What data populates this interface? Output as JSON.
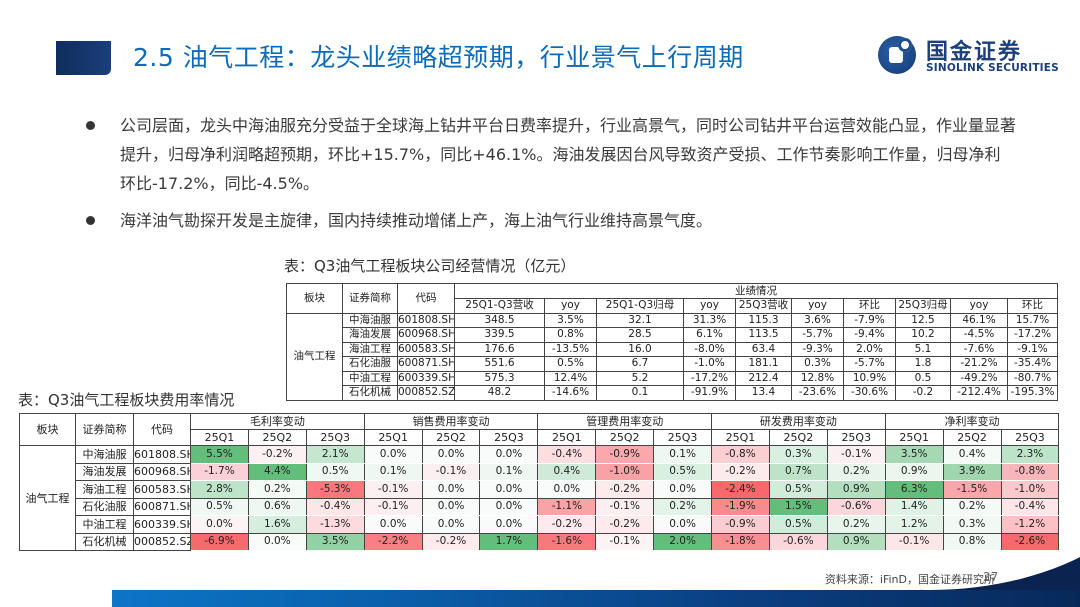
{
  "header": {
    "title": "2.5 油气工程：龙头业绩略超预期，行业景气上行周期",
    "logo_cn": "国金证券",
    "logo_en": "SINOLINK SECURITIES"
  },
  "bullets": [
    "公司层面，龙头中海油服充分受益于全球海上钻井平台日费率提升，行业高景气，同时公司钻井平台运营效能凸显，作业量显著提升，归母净利润略超预期，环比+15.7%，同比+46.1%。海油发展因台风导致资产受损、工作节奏影响工作量，归母净利环比-17.2%，同比-4.5%。",
    "海洋油气勘探开发是主旋律，国内持续推动增储上产，海上油气行业维持高景气度。"
  ],
  "table1": {
    "caption": "表：Q3油气工程板块公司经营情况（亿元）",
    "headers": {
      "sector": "板块",
      "name": "证券简称",
      "code": "代码",
      "group": "业绩情况",
      "cols": [
        "25Q1-Q3营收",
        "yoy",
        "25Q1-Q3归母",
        "yoy",
        "25Q3营收",
        "yoy",
        "环比",
        "25Q3归母",
        "yoy",
        "环比"
      ]
    },
    "sector": "油气工程",
    "rows": [
      {
        "name": "中海油服",
        "code": "601808.SH",
        "values": [
          "348.5",
          "3.5%",
          "32.1",
          "31.3%",
          "115.3",
          "3.6%",
          "-7.9%",
          "12.5",
          "46.1%",
          "15.7%"
        ]
      },
      {
        "name": "海油发展",
        "code": "600968.SH",
        "values": [
          "339.5",
          "0.8%",
          "28.5",
          "6.1%",
          "113.5",
          "-5.7%",
          "-9.4%",
          "10.2",
          "-4.5%",
          "-17.2%"
        ]
      },
      {
        "name": "海油工程",
        "code": "600583.SH",
        "values": [
          "176.6",
          "-13.5%",
          "16.0",
          "-8.0%",
          "63.4",
          "-9.3%",
          "2.0%",
          "5.1",
          "-7.6%",
          "-9.1%"
        ]
      },
      {
        "name": "石化油服",
        "code": "600871.SH",
        "values": [
          "551.6",
          "0.5%",
          "6.7",
          "-1.0%",
          "181.1",
          "0.3%",
          "-5.7%",
          "1.8",
          "-21.2%",
          "-35.4%"
        ]
      },
      {
        "name": "中油工程",
        "code": "600339.SH",
        "values": [
          "575.3",
          "12.4%",
          "5.2",
          "-17.2%",
          "212.4",
          "12.8%",
          "10.9%",
          "0.5",
          "-49.2%",
          "-80.7%"
        ]
      },
      {
        "name": "石化机械",
        "code": "000852.SZ",
        "values": [
          "48.2",
          "-14.6%",
          "0.1",
          "-91.9%",
          "13.4",
          "-23.6%",
          "-30.6%",
          "-0.2",
          "-212.4%",
          "-195.3%"
        ]
      }
    ]
  },
  "table2": {
    "caption": "表：Q3油气工程板块费用率情况",
    "headers": {
      "sector": "板块",
      "name": "证券简称",
      "code": "代码",
      "groups": [
        "毛利率变动",
        "销售费用率变动",
        "管理费用率变动",
        "研发费用率变动",
        "净利率变动"
      ],
      "quarters": [
        "25Q1",
        "25Q2",
        "25Q3"
      ]
    },
    "sector": "油气工程",
    "rows": [
      {
        "name": "中海油服",
        "code": "601808.SH",
        "values": [
          "5.5%",
          "-0.2%",
          "2.1%",
          "0.0%",
          "0.0%",
          "0.0%",
          "-0.4%",
          "-0.9%",
          "0.1%",
          "-0.8%",
          "0.3%",
          "-0.1%",
          "3.5%",
          "0.4%",
          "2.3%"
        ],
        "colors": [
          "#63be7b",
          "#fcf0f2",
          "#c6e7cf",
          "#f8fbfa",
          "#f8fbfa",
          "#f8fbfa",
          "#fcdde0",
          "#f9a9ad",
          "#eef7f1",
          "#fbcfd2",
          "#d9efe0",
          "#fceff1",
          "#a5d9b3",
          "#f4faf6",
          "#bde4c8"
        ]
      },
      {
        "name": "海油发展",
        "code": "600968.SH",
        "values": [
          "-1.7%",
          "4.4%",
          "0.5%",
          "0.1%",
          "-0.1%",
          "0.1%",
          "0.4%",
          "-1.0%",
          "0.5%",
          "-0.2%",
          "0.7%",
          "0.2%",
          "0.9%",
          "3.9%",
          "-0.8%"
        ],
        "colors": [
          "#fbd1d5",
          "#63be7b",
          "#f0f8f3",
          "#eef7f1",
          "#fceff1",
          "#eef7f1",
          "#cfebd8",
          "#f8a2a6",
          "#d9efe0",
          "#fceaec",
          "#bde4c8",
          "#e8f5ec",
          "#eaf6ee",
          "#9fd6ae",
          "#f9b6ba"
        ]
      },
      {
        "name": "海油工程",
        "code": "600583.SH",
        "values": [
          "2.8%",
          "0.2%",
          "-5.3%",
          "-0.1%",
          "0.0%",
          "0.0%",
          "0.0%",
          "-0.2%",
          "0.0%",
          "-2.4%",
          "0.5%",
          "0.9%",
          "6.3%",
          "-1.5%",
          "-1.0%"
        ],
        "colors": [
          "#bde4c8",
          "#f4faf6",
          "#f8787d",
          "#fceff1",
          "#f8fbfa",
          "#f8fbfa",
          "#f8fbfa",
          "#fceaec",
          "#f8fbfa",
          "#f8696b",
          "#d1ecd9",
          "#b3dfbf",
          "#63be7b",
          "#f9a7ab",
          "#fbc9cc"
        ]
      },
      {
        "name": "石化油服",
        "code": "600871.SH",
        "values": [
          "0.5%",
          "0.6%",
          "-0.4%",
          "-0.1%",
          "0.0%",
          "0.0%",
          "-1.1%",
          "-0.1%",
          "0.2%",
          "-1.9%",
          "1.5%",
          "-0.6%",
          "1.4%",
          "0.2%",
          "-0.4%"
        ],
        "colors": [
          "#f0f8f3",
          "#eef7f1",
          "#fce6e8",
          "#fceff1",
          "#f8fbfa",
          "#f8fbfa",
          "#f9a3a7",
          "#fceff1",
          "#e3f3e8",
          "#f98b8f",
          "#63be7b",
          "#fbd6da",
          "#e0f2e6",
          "#f4faf6",
          "#fce6e8"
        ]
      },
      {
        "name": "中油工程",
        "code": "600339.SH",
        "values": [
          "0.0%",
          "1.6%",
          "-1.3%",
          "0.0%",
          "0.0%",
          "0.0%",
          "-0.2%",
          "-0.2%",
          "0.0%",
          "-0.9%",
          "0.5%",
          "0.2%",
          "1.2%",
          "0.3%",
          "-1.2%"
        ],
        "colors": [
          "#fcf3f5",
          "#d6eedd",
          "#fcdadd",
          "#f8fbfa",
          "#f8fbfa",
          "#f8fbfa",
          "#fceaec",
          "#fceaec",
          "#f8fbfa",
          "#fbcdd0",
          "#d1ecd9",
          "#e8f5ec",
          "#e3f3e8",
          "#f2f9f4",
          "#fbc1c4"
        ]
      },
      {
        "name": "石化机械",
        "code": "000852.SZ",
        "values": [
          "-6.9%",
          "0.0%",
          "3.5%",
          "-2.2%",
          "-0.2%",
          "1.7%",
          "-1.6%",
          "-0.1%",
          "2.0%",
          "-1.8%",
          "-0.6%",
          "0.9%",
          "-0.1%",
          "0.8%",
          "-2.6%"
        ],
        "colors": [
          "#f8696b",
          "#f8fbfa",
          "#92d1a3",
          "#f87f83",
          "#fceaec",
          "#63be7b",
          "#f8787d",
          "#fcf3f5",
          "#63be7b",
          "#f98f93",
          "#fbd6da",
          "#b3dfbf",
          "#fce6e8",
          "#f0f8f3",
          "#f8696b"
        ]
      }
    ]
  },
  "footer": {
    "source": "资料来源：iFinD，国金证券研究所",
    "page_number": "27"
  },
  "colors": {
    "title": "#0c6bb8",
    "brand_navy": "#1d3f7a",
    "heat_green": "#63be7b",
    "heat_red": "#f8696b"
  }
}
